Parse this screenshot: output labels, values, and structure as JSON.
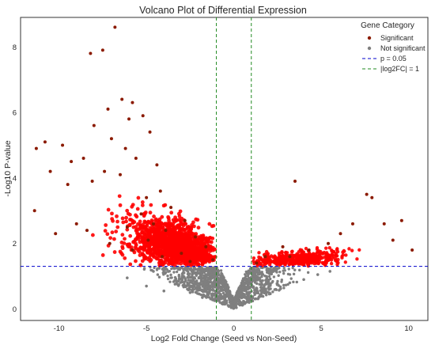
{
  "chart_data": {
    "type": "scatter",
    "title": "Volcano Plot of Differential Expression",
    "xlabel": "Log2 Fold Change (Seed vs Non-Seed)",
    "ylabel": "-Log10 P-value",
    "xlim": [
      -12.2,
      11.1
    ],
    "ylim": [
      -0.35,
      8.9
    ],
    "xticks": [
      -10,
      -5,
      0,
      5,
      10
    ],
    "yticks": [
      0,
      2,
      4,
      6,
      8
    ],
    "grid": false,
    "legend": {
      "title": "Gene Category",
      "placement": "top-right",
      "entries": [
        "Significant",
        "Not significant",
        "p = 0.05",
        "|log2FC| = 1"
      ]
    },
    "thresholds": {
      "p_value_line_y": 1.3,
      "fold_change_lines_x": [
        -1,
        1
      ]
    },
    "colors": {
      "significant_fill": "#ff0000",
      "significant_point": "#8b1a00",
      "not_significant": "#7f7f7f",
      "p_line": "#0000cc",
      "fc_line": "#228b22"
    },
    "series": [
      {
        "name": "Significant",
        "points": [
          [
            -6.8,
            8.6
          ],
          [
            -8.2,
            7.8
          ],
          [
            -7.5,
            7.9
          ],
          [
            -6.4,
            6.4
          ],
          [
            -7.2,
            6.1
          ],
          [
            -5.8,
            6.3
          ],
          [
            -6.0,
            5.8
          ],
          [
            -8.0,
            5.6
          ],
          [
            -5.2,
            5.9
          ],
          [
            -10.8,
            5.1
          ],
          [
            -11.3,
            4.9
          ],
          [
            -9.8,
            5.0
          ],
          [
            -4.8,
            5.4
          ],
          [
            -7.0,
            5.2
          ],
          [
            -9.3,
            4.5
          ],
          [
            -8.6,
            4.6
          ],
          [
            -10.5,
            4.2
          ],
          [
            -6.2,
            4.9
          ],
          [
            -5.6,
            4.6
          ],
          [
            -4.4,
            4.4
          ],
          [
            -9.5,
            3.8
          ],
          [
            -8.1,
            3.9
          ],
          [
            -7.4,
            4.2
          ],
          [
            -6.5,
            4.1
          ],
          [
            -4.2,
            3.6
          ],
          [
            -3.6,
            3.1
          ],
          [
            -11.4,
            3.0
          ],
          [
            -10.2,
            2.3
          ],
          [
            -9.0,
            2.6
          ],
          [
            -8.4,
            2.4
          ],
          [
            -2.8,
            2.7
          ],
          [
            -2.2,
            2.2
          ],
          [
            -1.6,
            1.9
          ],
          [
            -1.2,
            1.5
          ],
          [
            -3.0,
            1.7
          ],
          [
            -5.0,
            3.4
          ],
          [
            -5.3,
            2.9
          ],
          [
            -4.6,
            2.6
          ],
          [
            -3.9,
            2.4
          ],
          [
            -4.9,
            2.1
          ],
          [
            -6.1,
            2.5
          ],
          [
            -7.1,
            2.0
          ],
          [
            -5.8,
            1.8
          ],
          [
            -4.1,
            1.6
          ],
          [
            -2.5,
            1.45
          ],
          [
            3.5,
            3.9
          ],
          [
            7.6,
            3.5
          ],
          [
            7.9,
            3.4
          ],
          [
            8.6,
            2.6
          ],
          [
            9.6,
            2.7
          ],
          [
            10.2,
            1.8
          ],
          [
            9.1,
            2.1
          ],
          [
            6.8,
            2.6
          ],
          [
            6.1,
            2.3
          ],
          [
            5.4,
            2.0
          ],
          [
            4.3,
            1.8
          ],
          [
            2.8,
            1.9
          ],
          [
            3.2,
            1.6
          ],
          [
            1.8,
            1.6
          ],
          [
            1.3,
            1.4
          ]
        ]
      },
      {
        "name": "Not significant",
        "points": [
          [
            -6.1,
            0.95
          ],
          [
            -5.0,
            0.7
          ],
          [
            -4.0,
            0.55
          ],
          [
            -3.2,
            0.75
          ],
          [
            -2.5,
            0.5
          ],
          [
            -1.8,
            0.35
          ],
          [
            -1.0,
            0.25
          ],
          [
            -0.5,
            0.15
          ],
          [
            0.0,
            0.05
          ],
          [
            0.4,
            0.2
          ],
          [
            0.9,
            0.35
          ],
          [
            1.6,
            0.4
          ],
          [
            2.4,
            0.6
          ],
          [
            3.2,
            0.8
          ],
          [
            4.0,
            0.9
          ],
          [
            4.8,
            1.05
          ],
          [
            5.5,
            1.15
          ],
          [
            -2.9,
            1.1
          ],
          [
            -4.6,
            1.15
          ],
          [
            2.0,
            1.1
          ]
        ]
      }
    ]
  }
}
